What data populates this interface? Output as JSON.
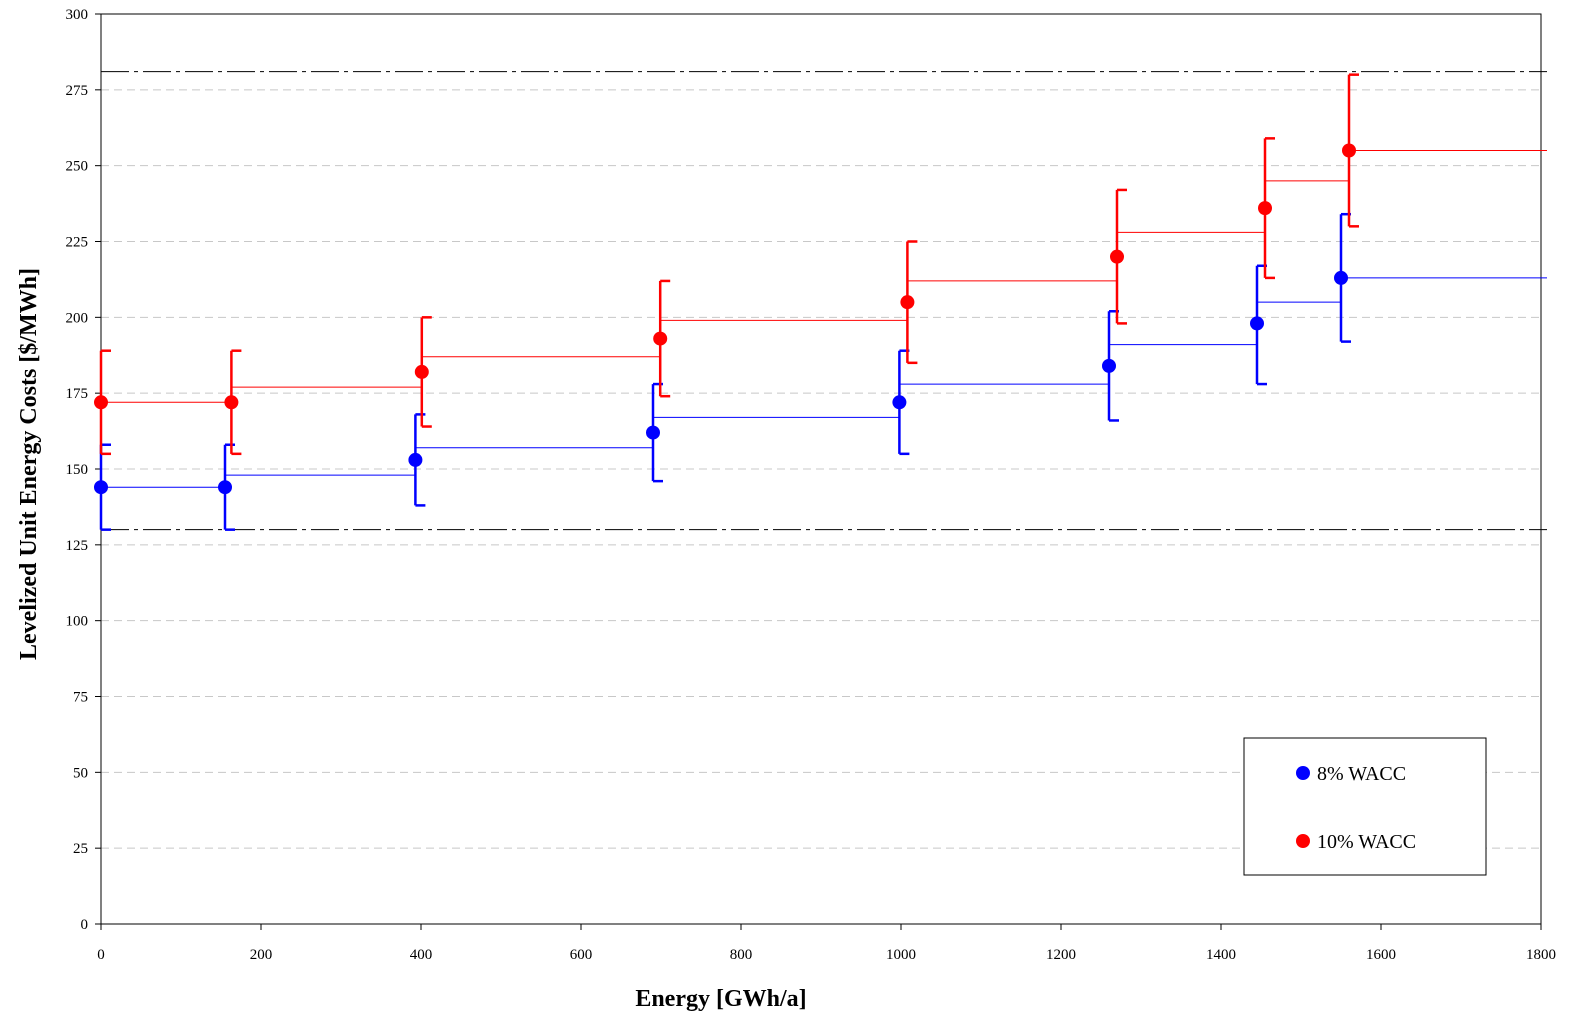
{
  "chart_data": {
    "type": "scatter",
    "xlabel": "Energy [GWh/a]",
    "ylabel": "Levelized Unit Energy Costs [$/MWh]",
    "xlim": [
      0,
      1800
    ],
    "ylim": [
      0,
      300
    ],
    "x_ticks": [
      "0",
      "200",
      "400",
      "600",
      "800",
      "1000",
      "1200",
      "1400",
      "1600",
      "1800"
    ],
    "y_ticks": [
      "0",
      "25",
      "50",
      "75",
      "100",
      "125",
      "150",
      "175",
      "200",
      "225",
      "250",
      "275",
      "300"
    ],
    "grid": "horizontal dashed",
    "legend_position": "bottom-right",
    "reference_lines": [
      130,
      281
    ],
    "series": [
      {
        "name": "8% WACC",
        "color": "#0000ff",
        "x": [
          0,
          155,
          393,
          690,
          998,
          1260,
          1445,
          1550
        ],
        "y": [
          144,
          144,
          153,
          162,
          172,
          184,
          198,
          213
        ],
        "err_low": [
          130,
          130,
          138,
          146,
          155,
          166,
          178,
          192
        ],
        "err_high": [
          158,
          158,
          168,
          178,
          189,
          202,
          217,
          234
        ],
        "step_y": [
          144,
          148,
          157,
          167,
          178,
          191,
          205,
          213
        ]
      },
      {
        "name": "10% WACC",
        "color": "#ff0000",
        "x": [
          0,
          163,
          401,
          699,
          1008,
          1270,
          1455,
          1560
        ],
        "y": [
          172,
          172,
          182,
          193,
          205,
          220,
          236,
          255
        ],
        "err_low": [
          155,
          155,
          164,
          174,
          185,
          198,
          213,
          230
        ],
        "err_high": [
          189,
          189,
          200,
          212,
          225,
          242,
          259,
          280
        ],
        "step_y": [
          172,
          177,
          187,
          199,
          212,
          228,
          245,
          255
        ]
      }
    ]
  }
}
